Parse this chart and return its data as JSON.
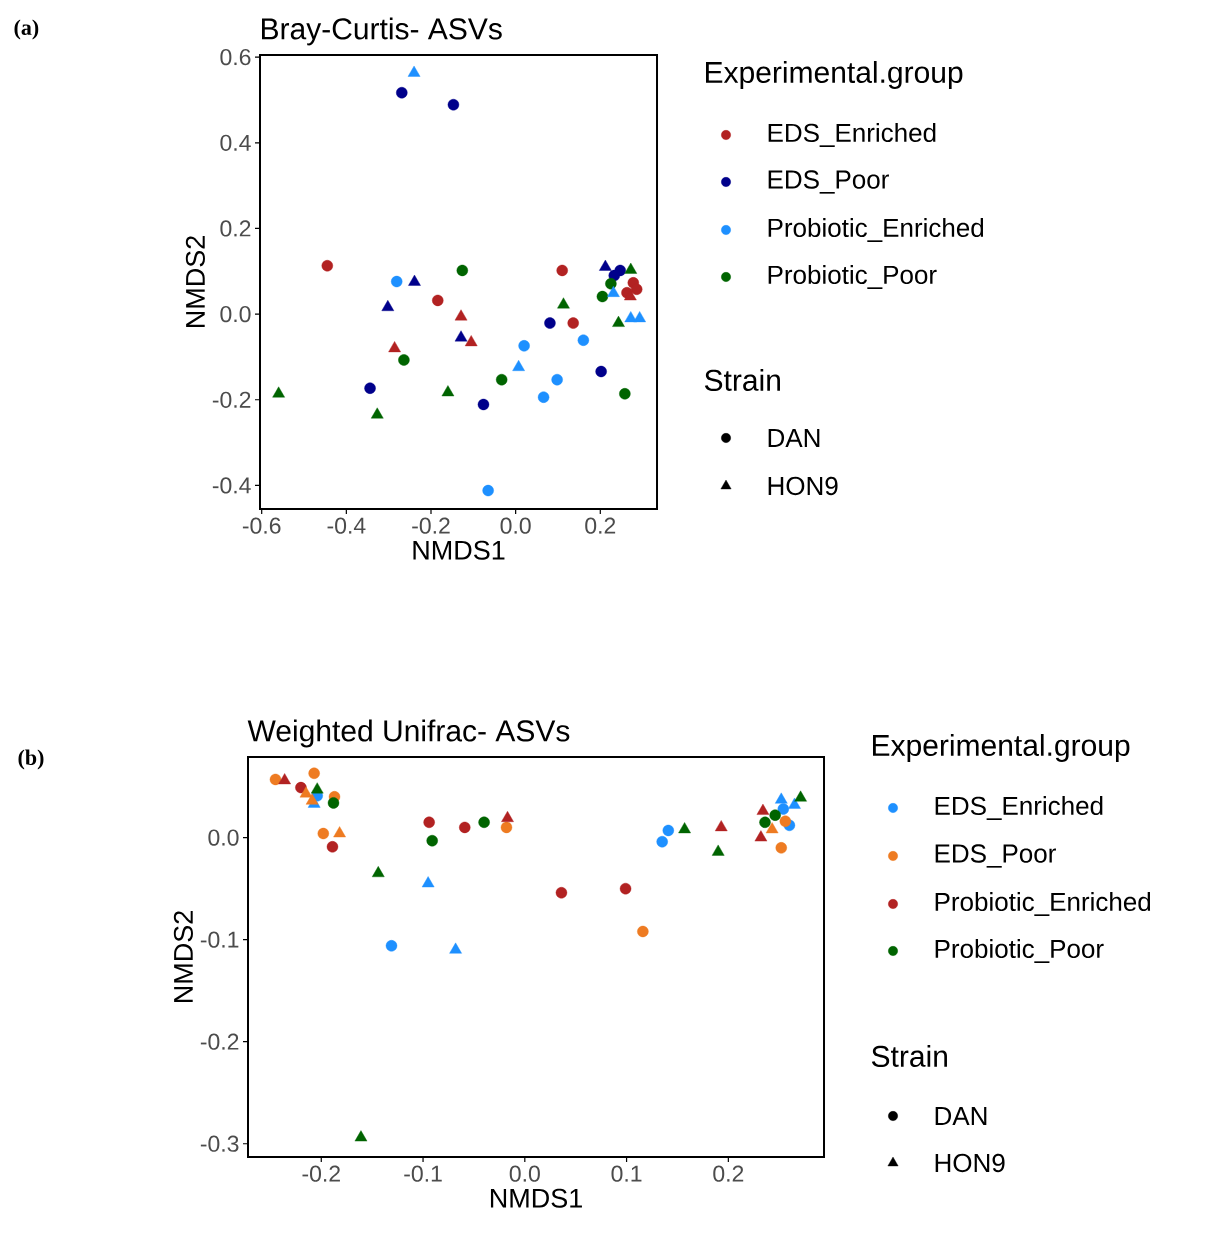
{
  "chart_data": [
    {
      "type": "scatter",
      "title": "Bray-Curtis- ASVs",
      "xlabel": "NMDS1",
      "ylabel": "NMDS2",
      "legend_title": "Experimental.group",
      "legend": "right",
      "xlim": [
        -0.604,
        0.334
      ],
      "ylim": [
        -0.455,
        0.605
      ],
      "xticks": [
        -0.6,
        -0.4,
        -0.2,
        {
          "value": 0,
          "label": "0.0"
        },
        0.2
      ],
      "yticks": [
        -0.4,
        -0.2,
        {
          "value": 0,
          "label": "0.0"
        },
        0.2,
        0.4,
        0.6
      ],
      "annotations": [
        "(a)",
        "Strain",
        "DAN",
        "HON9"
      ],
      "series": [
        {
          "name": "EDS_Enriched",
          "color": "#b22222",
          "marker": "circle",
          "x": [
            -0.445,
            -0.184,
            0.11,
            0.136,
            0.278,
            0.286,
            0.263
          ],
          "values": [
            0.113,
            0.032,
            0.102,
            -0.021,
            0.073,
            0.058,
            0.05
          ]
        },
        {
          "name": "EDS_Poor",
          "color": "#00008b",
          "marker": "circle",
          "x": [
            -0.269,
            -0.147,
            -0.344,
            -0.076,
            0.081,
            0.202,
            0.247,
            0.233
          ],
          "values": [
            0.517,
            0.489,
            -0.173,
            -0.211,
            -0.021,
            -0.134,
            0.102,
            0.09
          ]
        },
        {
          "name": "Probiotic_Enriched",
          "color": "#1e90ff",
          "marker": "circle",
          "x": [
            -0.281,
            0.02,
            0.16,
            0.098,
            0.066,
            -0.065
          ],
          "values": [
            0.076,
            -0.074,
            -0.061,
            -0.153,
            -0.194,
            -0.412
          ]
        },
        {
          "name": "Probiotic_Poor",
          "color": "#006400",
          "marker": "circle",
          "x": [
            -0.126,
            -0.264,
            -0.033,
            0.258,
            0.205,
            0.225
          ],
          "values": [
            0.102,
            -0.107,
            -0.153,
            -0.186,
            0.041,
            0.071
          ]
        },
        {
          "color": "#b22222",
          "marker": "triangle",
          "x": [
            -0.129,
            -0.286,
            -0.105,
            0.271
          ],
          "values": [
            -0.006,
            -0.08,
            -0.066,
            0.041
          ]
        },
        {
          "color": "#00008b",
          "marker": "triangle",
          "x": [
            -0.239,
            -0.302,
            -0.129,
            0.212
          ],
          "values": [
            0.075,
            0.016,
            -0.055,
            0.11
          ]
        },
        {
          "color": "#1e90ff",
          "marker": "triangle",
          "x": [
            -0.24,
            0.007,
            0.231,
            0.272,
            0.293
          ],
          "values": [
            0.563,
            -0.124,
            0.049,
            -0.01,
            -0.01
          ]
        },
        {
          "color": "#006400",
          "marker": "triangle",
          "x": [
            -0.56,
            -0.327,
            -0.16,
            0.113,
            0.243,
            0.272
          ],
          "values": [
            -0.186,
            -0.235,
            -0.183,
            0.022,
            -0.021,
            0.103
          ]
        }
      ]
    },
    {
      "type": "scatter",
      "title": "Weighted Unifrac- ASVs",
      "xlabel": "NMDS1",
      "ylabel": "NMDS2",
      "legend_title": "Experimental.group",
      "legend": "right",
      "xlim": [
        -0.272,
        0.294
      ],
      "ylim": [
        -0.313,
        0.079
      ],
      "xticks": [
        -0.2,
        -0.1,
        {
          "value": 0,
          "label": "0.0"
        },
        0.1,
        0.2
      ],
      "yticks": [
        -0.3,
        -0.2,
        -0.1,
        {
          "value": 0,
          "label": "0.0"
        }
      ],
      "annotations": [
        "(b)",
        "Strain",
        "DAN",
        "HON9"
      ],
      "series": [
        {
          "name": "EDS_Enriched",
          "color": "#1e90ff",
          "marker": "circle",
          "x": [
            -0.204,
            -0.131,
            0.141,
            0.135,
            0.26,
            0.254
          ],
          "values": [
            0.041,
            -0.106,
            0.007,
            -0.004,
            0.012,
            0.028
          ]
        },
        {
          "name": "EDS_Poor",
          "color": "#ee7b22",
          "marker": "circle",
          "x": [
            -0.245,
            -0.207,
            -0.187,
            -0.198,
            -0.018,
            0.116,
            0.252,
            0.256
          ],
          "values": [
            0.057,
            0.063,
            0.04,
            0.004,
            0.01,
            -0.092,
            -0.01,
            0.016
          ]
        },
        {
          "name": "Probiotic_Enriched",
          "color": "#b22222",
          "marker": "circle",
          "x": [
            -0.22,
            -0.189,
            -0.094,
            -0.059,
            0.036,
            0.099
          ],
          "values": [
            0.049,
            -0.009,
            0.015,
            0.01,
            -0.054,
            -0.05
          ]
        },
        {
          "name": "Probiotic_Poor",
          "color": "#006400",
          "marker": "circle",
          "x": [
            -0.188,
            -0.091,
            -0.04,
            0.236,
            0.246
          ],
          "values": [
            0.034,
            -0.003,
            0.015,
            0.015,
            0.022
          ]
        },
        {
          "color": "#1e90ff",
          "marker": "triangle",
          "x": [
            -0.207,
            -0.095,
            -0.068,
            0.252,
            0.265
          ],
          "values": [
            0.033,
            -0.045,
            -0.11,
            0.037,
            0.032
          ]
        },
        {
          "color": "#ee7b22",
          "marker": "triangle",
          "x": [
            -0.215,
            -0.182,
            0.243,
            -0.209
          ],
          "values": [
            0.043,
            0.004,
            0.008,
            0.036
          ]
        },
        {
          "color": "#b22222",
          "marker": "triangle",
          "x": [
            -0.236,
            -0.017,
            0.193,
            0.234,
            0.232
          ],
          "values": [
            0.056,
            0.019,
            0.01,
            0.026,
            0.0
          ]
        },
        {
          "color": "#006400",
          "marker": "triangle",
          "x": [
            -0.204,
            -0.144,
            -0.161,
            0.157,
            0.19,
            0.271
          ],
          "values": [
            0.047,
            -0.035,
            -0.294,
            0.008,
            -0.014,
            0.039
          ]
        }
      ]
    }
  ]
}
